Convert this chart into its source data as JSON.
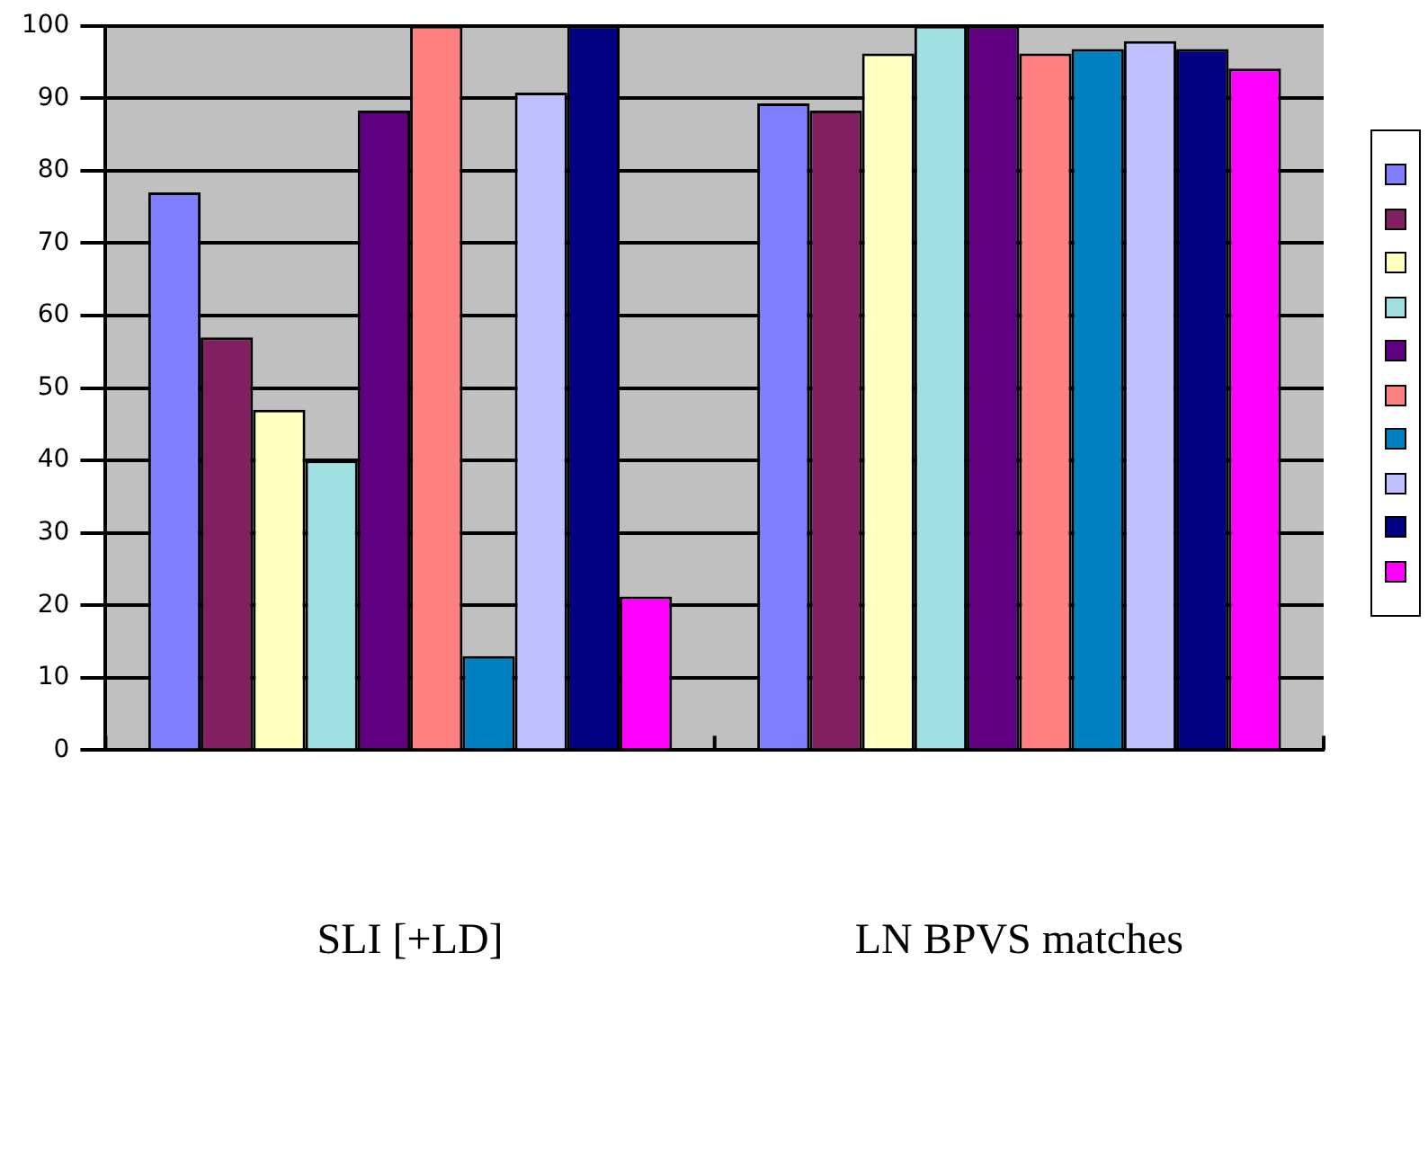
{
  "chart_data": {
    "type": "bar",
    "categories": [
      "SLI [+LD]",
      "LN BPVS matches"
    ],
    "series": [
      {
        "color": "#8080ff",
        "values": [
          77,
          89.3
        ]
      },
      {
        "color": "#802060",
        "values": [
          57,
          88.3
        ]
      },
      {
        "color": "#ffffc0",
        "values": [
          47,
          96.2
        ]
      },
      {
        "color": "#a0e0e0",
        "values": [
          40,
          100
        ]
      },
      {
        "color": "#600080",
        "values": [
          88.3,
          100
        ]
      },
      {
        "color": "#ff8080",
        "values": [
          100,
          96.2
        ]
      },
      {
        "color": "#0080c0",
        "values": [
          13,
          96.8
        ]
      },
      {
        "color": "#c0c0ff",
        "values": [
          90.8,
          97.9
        ]
      },
      {
        "color": "#000080",
        "values": [
          100,
          96.8
        ]
      },
      {
        "color": "#ff00ff",
        "values": [
          21.2,
          94.1
        ]
      }
    ],
    "ylim": [
      0,
      100
    ],
    "yticks": [
      0,
      10,
      20,
      30,
      40,
      50,
      60,
      70,
      80,
      90,
      100
    ],
    "grid": "y"
  }
}
